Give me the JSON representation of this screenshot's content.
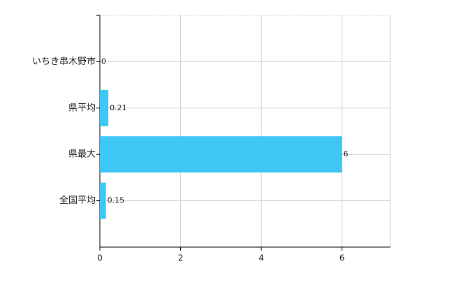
{
  "chart_data": {
    "type": "hbar",
    "categories": [
      "いちき串木野市",
      "県平均",
      "県最大",
      "全国平均"
    ],
    "values": [
      0,
      0.21,
      6,
      0.15
    ],
    "color": "#3ec6f5",
    "xlim": [
      0,
      7.2
    ],
    "xticks": [
      0,
      2,
      4,
      6
    ],
    "grid": true
  }
}
